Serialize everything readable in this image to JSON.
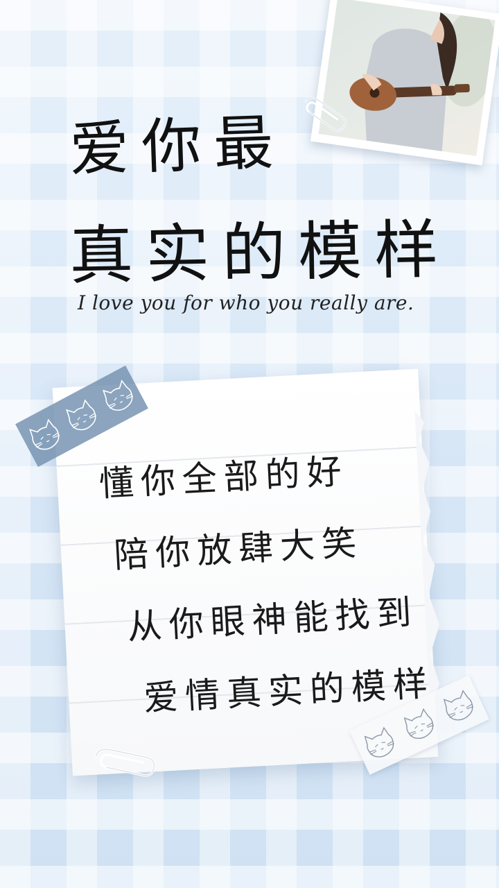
{
  "title": {
    "line1": "爱你最",
    "line2": "真实的模样"
  },
  "subtitle": "I love you for who you really are.",
  "note": {
    "lines": [
      "懂你全部的好",
      "陪你放肆大笑",
      "从你眼神能找到",
      "爱情真实的模样"
    ]
  },
  "photo": {
    "subject": "girl-playing-ukulele"
  },
  "icons": {
    "tape_decoration": "cat-icon",
    "clip": "paperclip-icon"
  },
  "colors": {
    "background": "#dceaf7",
    "tape_blue": "#7894b2",
    "text": "#111111"
  }
}
